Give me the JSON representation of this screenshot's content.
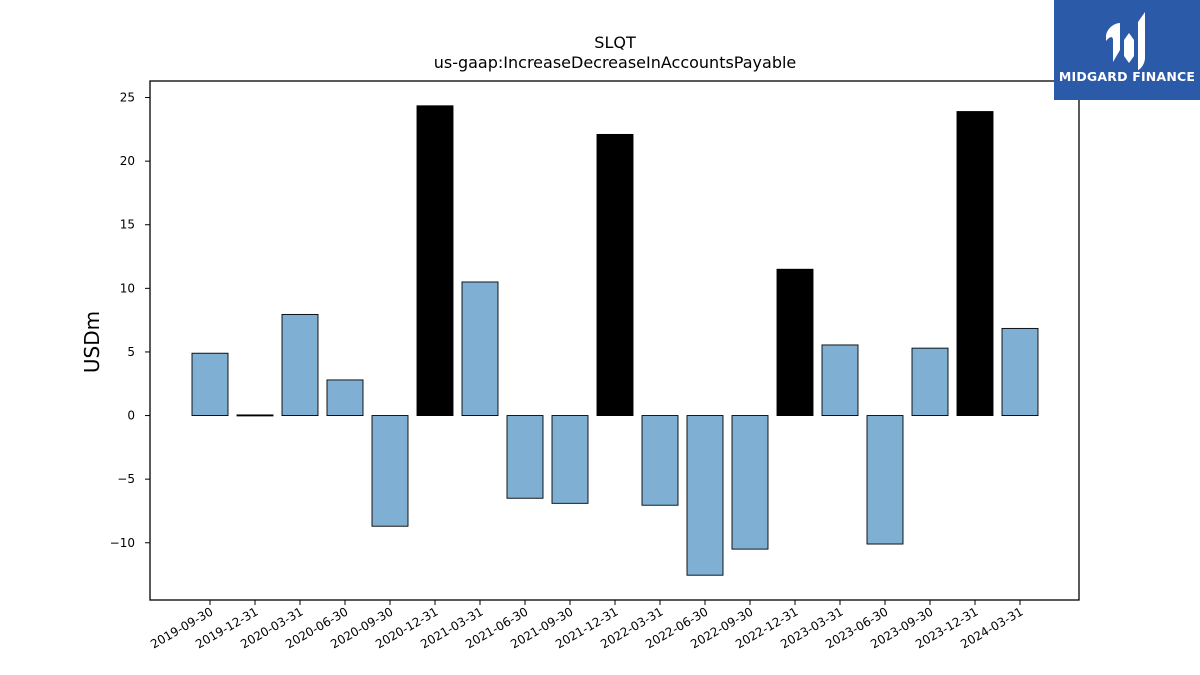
{
  "brand": {
    "name": "MIDGARD FINANCE",
    "bg_color": "#2b5aa8"
  },
  "chart_data": {
    "type": "bar",
    "title": "SLQT",
    "subtitle": "us-gaap:IncreaseDecreaseInAccountsPayable",
    "xlabel": "",
    "ylabel": "USDm",
    "ylim": [
      -14.5,
      26.3
    ],
    "yticks": [
      -10,
      -5,
      0,
      5,
      10,
      15,
      20,
      25
    ],
    "ytick_labels": [
      "−10",
      "−5",
      "0",
      "5",
      "10",
      "15",
      "20",
      "25"
    ],
    "grid": false,
    "categories": [
      "2019-09-30",
      "2019-12-31",
      "2020-03-31",
      "2020-06-30",
      "2020-09-30",
      "2020-12-31",
      "2021-03-31",
      "2021-06-30",
      "2021-09-30",
      "2021-12-31",
      "2022-03-31",
      "2022-06-30",
      "2022-09-30",
      "2022-12-31",
      "2023-03-31",
      "2023-06-30",
      "2023-09-30",
      "2023-12-31",
      "2024-03-31"
    ],
    "values": [
      4.9,
      0.05,
      7.95,
      2.8,
      -8.7,
      24.35,
      10.5,
      -6.5,
      -6.9,
      22.1,
      -7.05,
      -12.55,
      -10.5,
      11.5,
      5.55,
      -10.1,
      5.3,
      23.9,
      6.85
    ],
    "bar_colors": [
      "#7fb0d4",
      "#000000",
      "#7fb0d4",
      "#7fb0d4",
      "#7fb0d4",
      "#000000",
      "#7fb0d4",
      "#7fb0d4",
      "#7fb0d4",
      "#000000",
      "#7fb0d4",
      "#7fb0d4",
      "#7fb0d4",
      "#000000",
      "#7fb0d4",
      "#7fb0d4",
      "#7fb0d4",
      "#000000",
      "#7fb0d4"
    ]
  }
}
